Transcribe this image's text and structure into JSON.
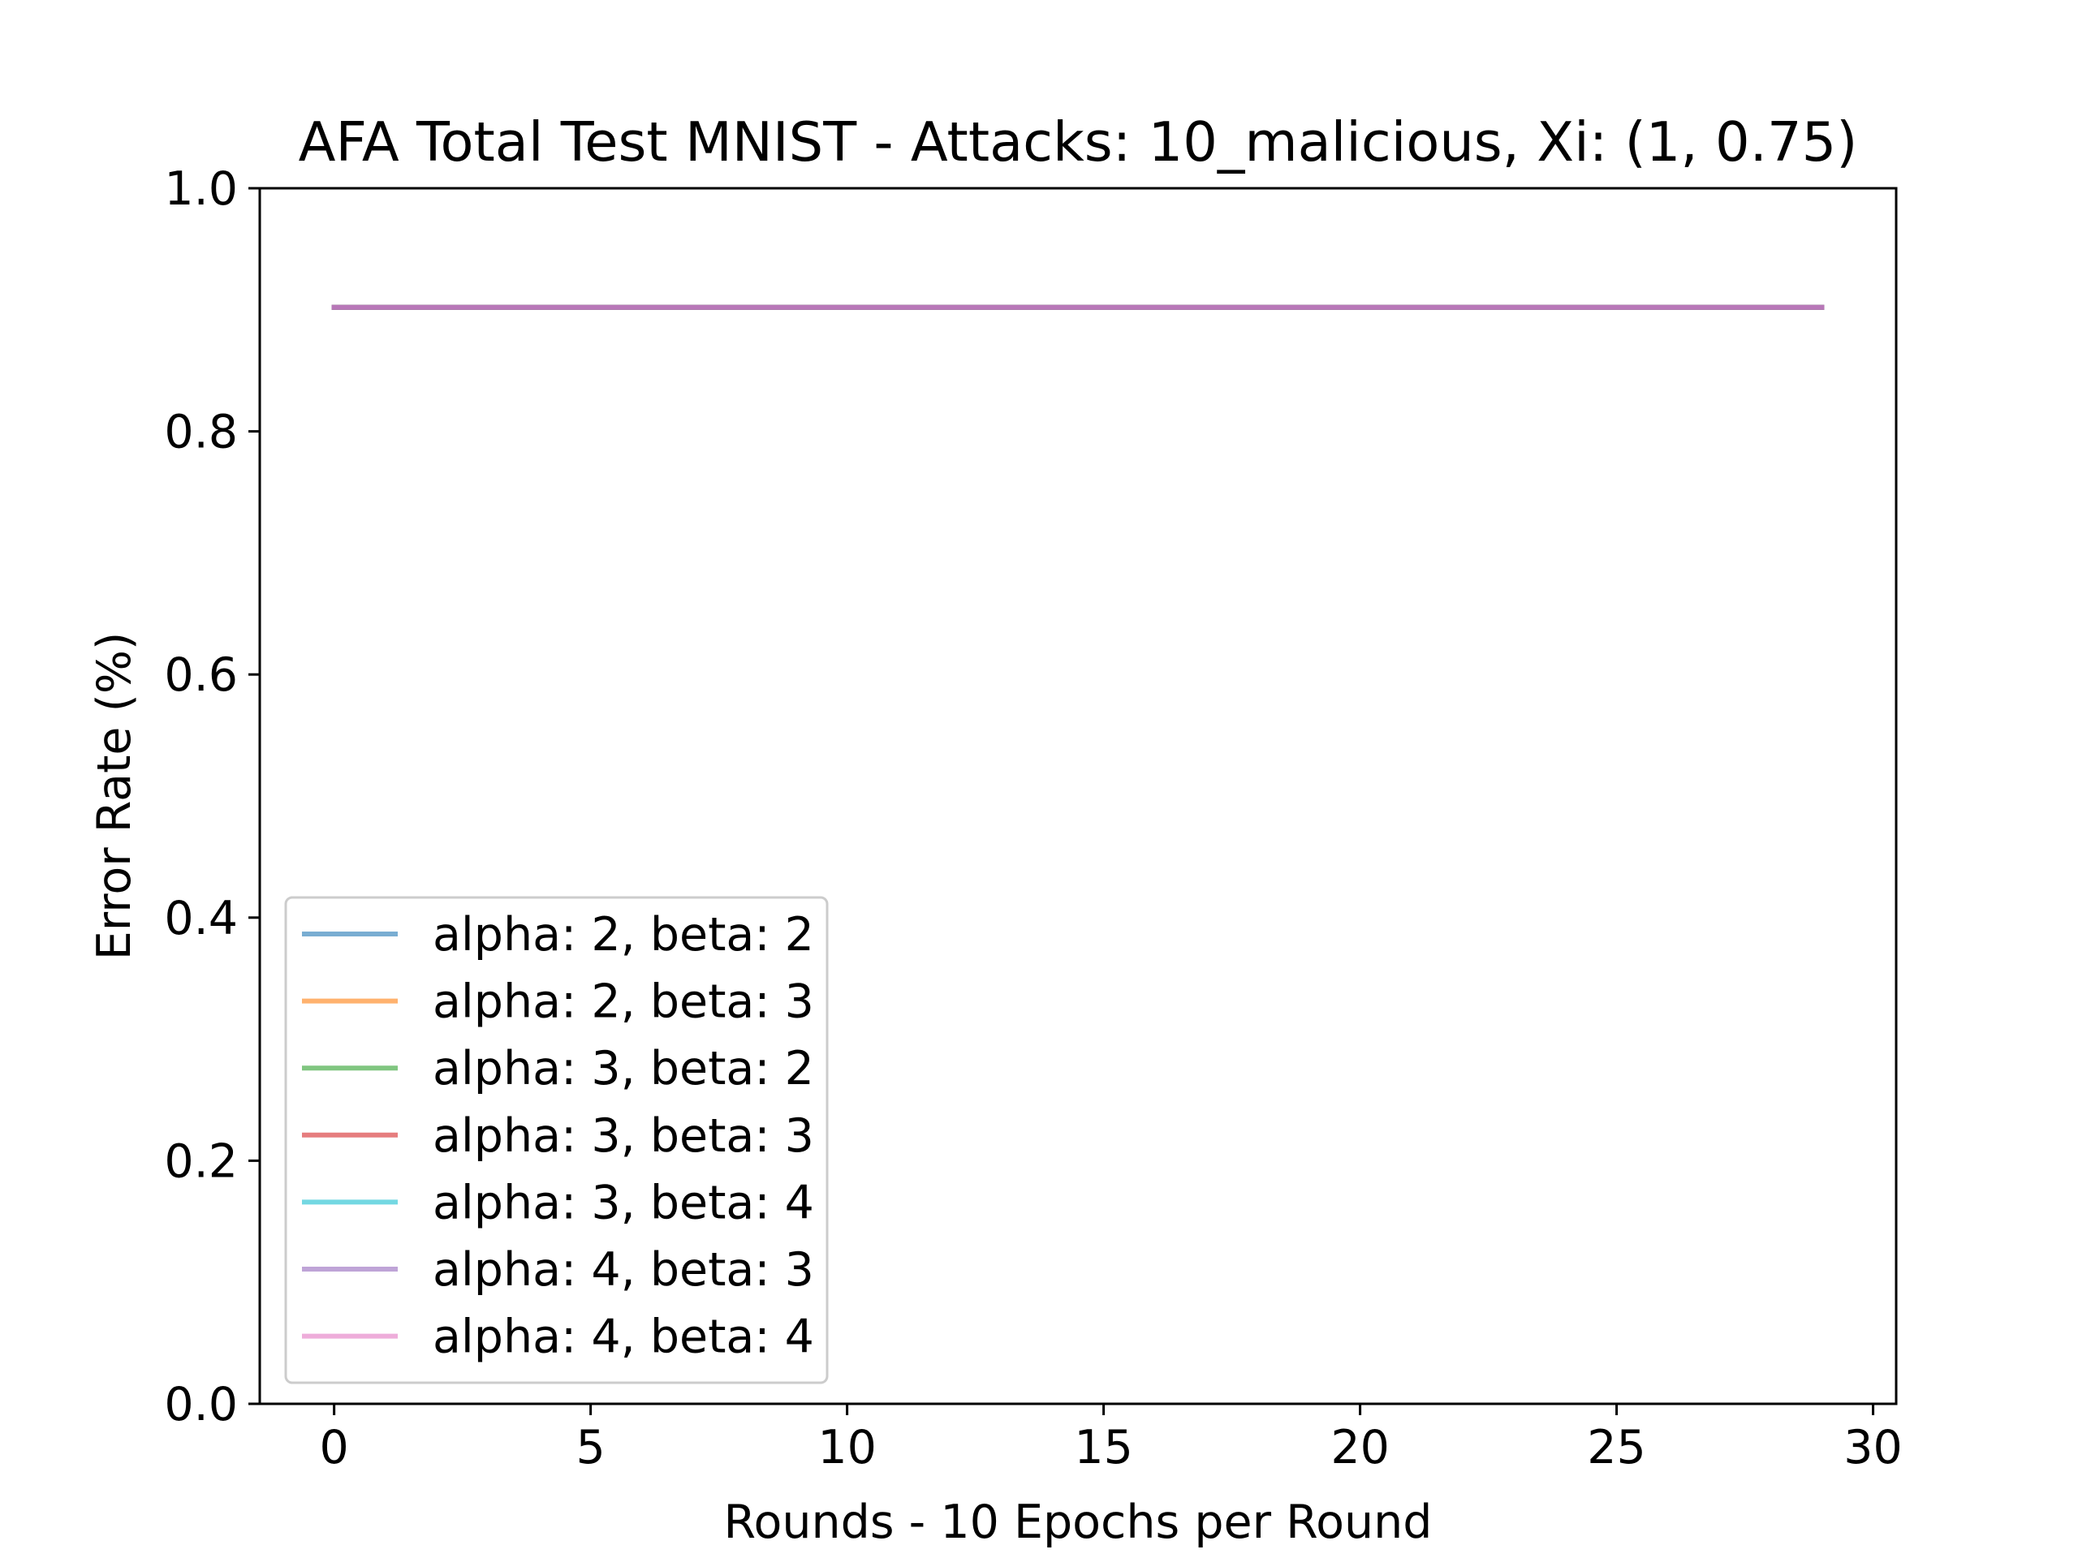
{
  "chart_data": {
    "type": "line",
    "title": "AFA Total Test MNIST - Attacks: 10_malicious, Xi: (1, 0.75)",
    "xlabel": "Rounds - 10 Epochs per Round",
    "ylabel": "Error Rate (%)",
    "xlim": [
      -1.45,
      30.45
    ],
    "ylim": [
      0.0,
      1.0
    ],
    "xticks": [
      0,
      5,
      10,
      15,
      20,
      25,
      30
    ],
    "yticks": [
      0.0,
      0.2,
      0.4,
      0.6,
      0.8,
      1.0
    ],
    "xtick_labels": [
      "0",
      "5",
      "10",
      "15",
      "20",
      "25",
      "30"
    ],
    "ytick_labels": [
      "0.0",
      "0.2",
      "0.4",
      "0.6",
      "0.8",
      "1.0"
    ],
    "grid": false,
    "legend_position": "lower-left",
    "x": [
      0,
      1,
      2,
      3,
      4,
      5,
      6,
      7,
      8,
      9,
      10,
      11,
      12,
      13,
      14,
      15,
      16,
      17,
      18,
      19,
      20,
      21,
      22,
      23,
      24,
      25,
      26,
      27,
      28,
      29
    ],
    "series": [
      {
        "name": "alpha: 2, beta: 2",
        "color": "#1f77b4",
        "values": [
          0.902,
          0.902,
          0.902,
          0.902,
          0.902,
          0.902,
          0.902,
          0.902,
          0.902,
          0.902,
          0.902,
          0.902,
          0.902,
          0.902,
          0.902,
          0.902,
          0.902,
          0.902,
          0.902,
          0.902,
          0.902,
          0.902,
          0.902,
          0.902,
          0.902,
          0.902,
          0.902,
          0.902,
          0.902,
          0.902
        ]
      },
      {
        "name": "alpha: 2, beta: 3",
        "color": "#ff7f0e",
        "values": [
          0.902,
          0.902,
          0.902,
          0.902,
          0.902,
          0.902,
          0.902,
          0.902,
          0.902,
          0.902,
          0.902,
          0.902,
          0.902,
          0.902,
          0.902,
          0.902,
          0.902,
          0.902,
          0.902,
          0.902,
          0.902,
          0.902,
          0.902,
          0.902,
          0.902,
          0.902,
          0.902,
          0.902,
          0.902,
          0.902
        ]
      },
      {
        "name": "alpha: 3, beta: 2",
        "color": "#2ca02c",
        "values": [
          0.902,
          0.902,
          0.902,
          0.902,
          0.902,
          0.902,
          0.902,
          0.902,
          0.902,
          0.902,
          0.902,
          0.902,
          0.902,
          0.902,
          0.902,
          0.902,
          0.902,
          0.902,
          0.902,
          0.902,
          0.902,
          0.902,
          0.902,
          0.902,
          0.902,
          0.902,
          0.902,
          0.902,
          0.902,
          0.902
        ]
      },
      {
        "name": "alpha: 3, beta: 3",
        "color": "#d62728",
        "values": [
          0.902,
          0.902,
          0.902,
          0.902,
          0.902,
          0.902,
          0.902,
          0.902,
          0.902,
          0.902,
          0.902,
          0.902,
          0.902,
          0.902,
          0.902,
          0.902,
          0.902,
          0.902,
          0.902,
          0.902,
          0.902,
          0.902,
          0.902,
          0.902,
          0.902,
          0.902,
          0.902,
          0.902,
          0.902,
          0.902
        ]
      },
      {
        "name": "alpha: 3, beta: 4",
        "color": "#17becf",
        "values": [
          0.902,
          0.902,
          0.902,
          0.902,
          0.902,
          0.902,
          0.902,
          0.902,
          0.902,
          0.902,
          0.902,
          0.902,
          0.902,
          0.902,
          0.902,
          0.902,
          0.902,
          0.902,
          0.902,
          0.902,
          0.902,
          0.902,
          0.902,
          0.902,
          0.902,
          0.902,
          0.902,
          0.902,
          0.902,
          0.902
        ]
      },
      {
        "name": "alpha: 4, beta: 3",
        "color": "#9467bd",
        "values": [
          0.902,
          0.902,
          0.902,
          0.902,
          0.902,
          0.902,
          0.902,
          0.902,
          0.902,
          0.902,
          0.902,
          0.902,
          0.902,
          0.902,
          0.902,
          0.902,
          0.902,
          0.902,
          0.902,
          0.902,
          0.902,
          0.902,
          0.902,
          0.902,
          0.902,
          0.902,
          0.902,
          0.902,
          0.902,
          0.902
        ]
      },
      {
        "name": "alpha: 4, beta: 4",
        "color": "#e377c2",
        "values": [
          0.902,
          0.902,
          0.902,
          0.902,
          0.902,
          0.902,
          0.902,
          0.902,
          0.902,
          0.902,
          0.902,
          0.902,
          0.902,
          0.902,
          0.902,
          0.902,
          0.902,
          0.902,
          0.902,
          0.902,
          0.902,
          0.902,
          0.902,
          0.902,
          0.902,
          0.902,
          0.902,
          0.902,
          0.902,
          0.902
        ]
      }
    ]
  }
}
